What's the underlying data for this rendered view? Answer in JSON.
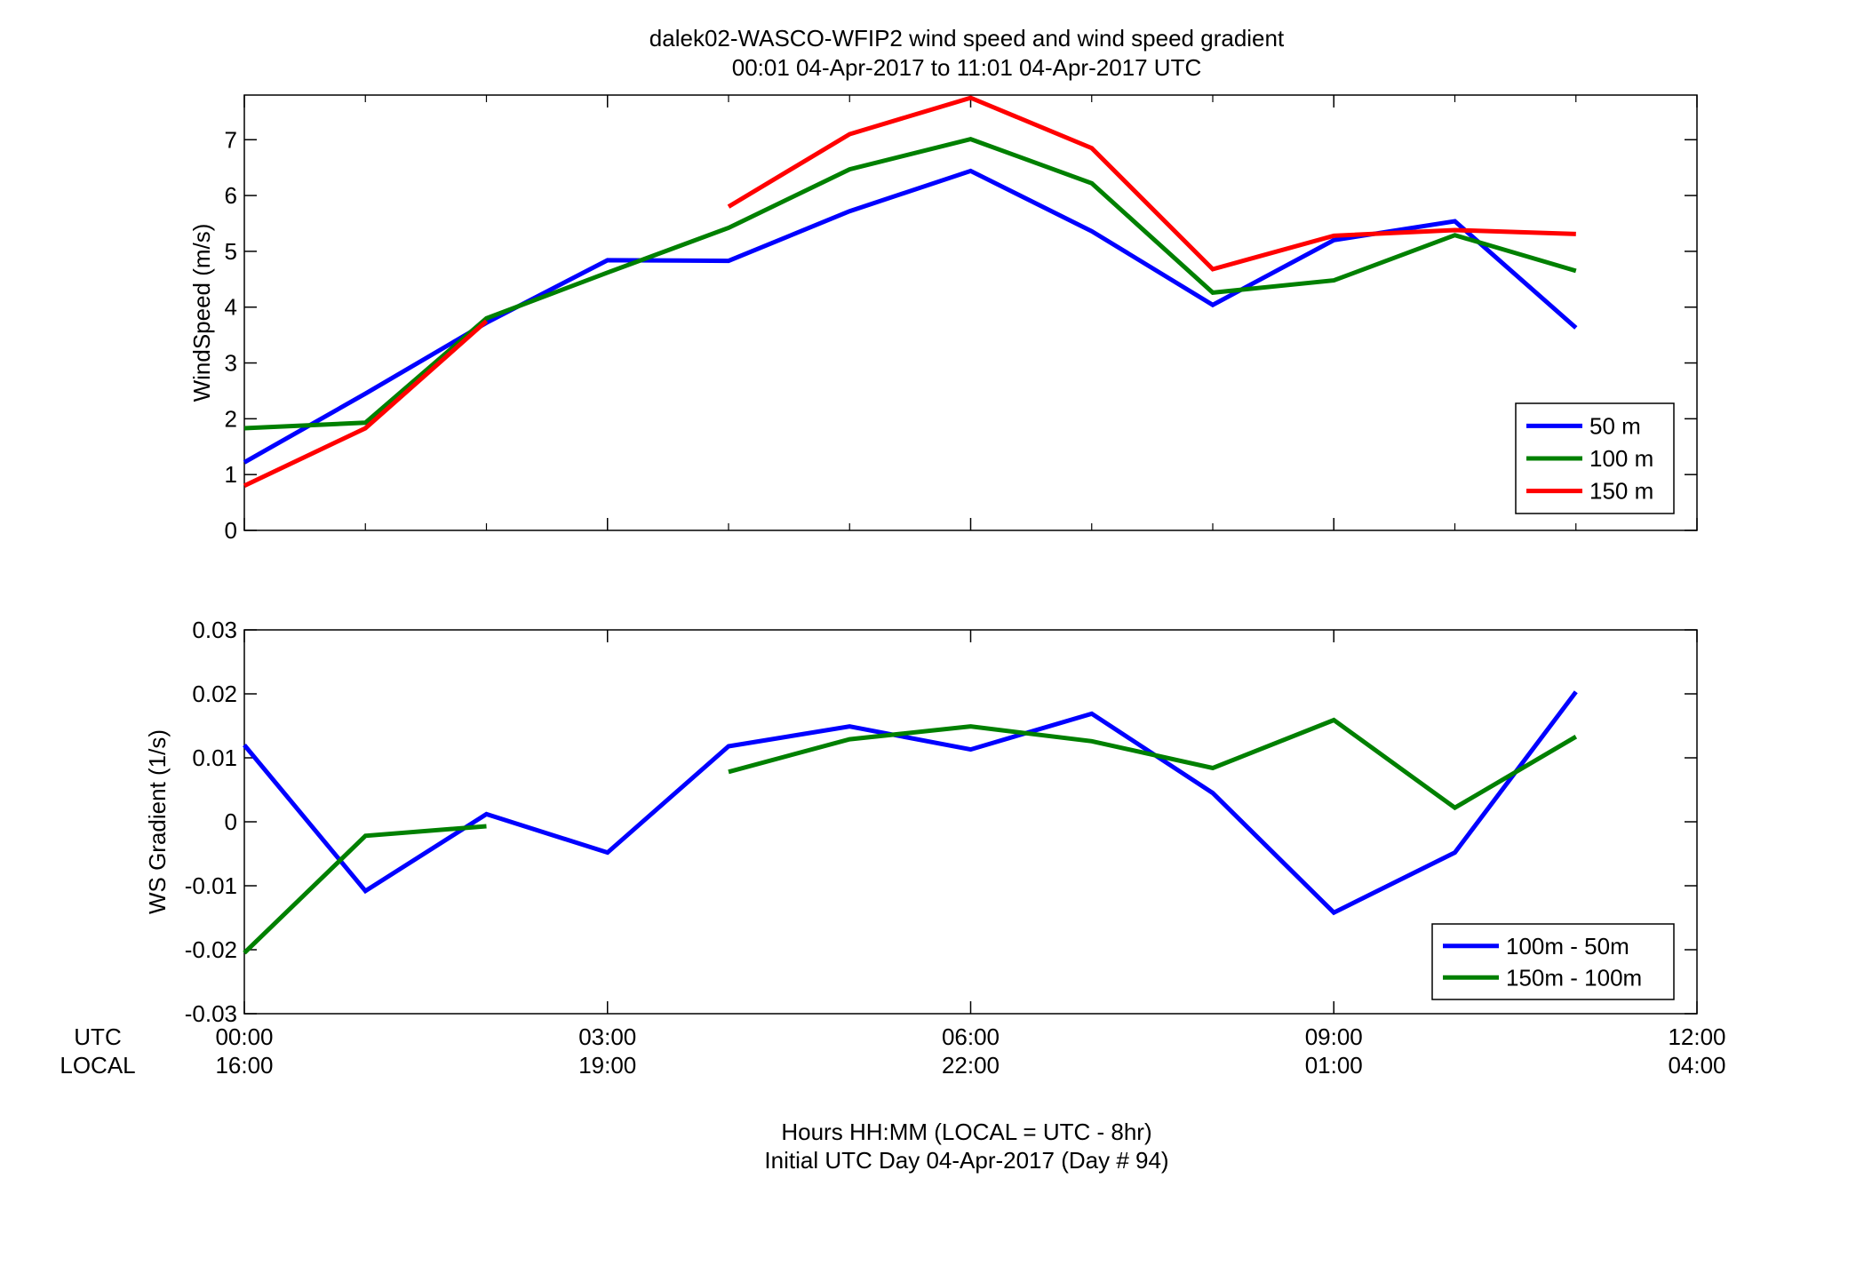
{
  "title_line1": "dalek02-WASCO-WFIP2  wind speed and wind speed gradient",
  "title_line2": "00:01 04-Apr-2017 to 11:01 04-Apr-2017  UTC",
  "xaxis": {
    "row_label_utc": "UTC",
    "row_label_local": "LOCAL",
    "label_line1": "Hours HH:MM  (LOCAL = UTC - 8hr)",
    "label_line2": "Initial UTC Day 04-Apr-2017 (Day # 94)",
    "ticks": [
      {
        "hour": 0,
        "utc": "00:00",
        "local": "16:00"
      },
      {
        "hour": 3,
        "utc": "03:00",
        "local": "19:00"
      },
      {
        "hour": 6,
        "utc": "06:00",
        "local": "22:00"
      },
      {
        "hour": 9,
        "utc": "09:00",
        "local": "01:00"
      },
      {
        "hour": 12,
        "utc": "12:00",
        "local": "04:00"
      }
    ],
    "xlim": [
      0,
      12
    ]
  },
  "colors": {
    "blue": "#0000ff",
    "green": "#008000",
    "red": "#ff0000"
  },
  "chart_data": [
    {
      "type": "line",
      "ylabel": "WindSpeed (m/s)",
      "ylim": [
        0,
        7.8
      ],
      "yticks": [
        0,
        1,
        2,
        3,
        4,
        5,
        6,
        7
      ],
      "legend_position": "bottom-right",
      "series": [
        {
          "name": "50 m",
          "color": "#0000ff",
          "x": [
            0,
            1,
            2,
            3,
            4,
            5,
            6,
            7,
            8,
            9,
            10,
            11
          ],
          "y": [
            1.22,
            2.45,
            3.72,
            4.84,
            4.83,
            5.72,
            6.44,
            5.36,
            4.04,
            5.2,
            5.54,
            3.63
          ]
        },
        {
          "name": "100 m",
          "color": "#008000",
          "x": [
            0,
            1,
            2,
            3,
            4,
            5,
            6,
            7,
            8,
            9,
            10,
            11
          ],
          "y": [
            1.83,
            1.93,
            3.8,
            4.62,
            5.42,
            6.47,
            7.01,
            6.22,
            4.26,
            4.48,
            5.29,
            4.65
          ]
        },
        {
          "name": "150 m",
          "color": "#ff0000",
          "x": [
            0,
            1,
            2,
            null,
            4,
            5,
            6,
            7,
            8,
            9,
            10,
            11
          ],
          "y": [
            0.8,
            1.83,
            3.75,
            null,
            5.8,
            7.1,
            7.75,
            6.85,
            4.68,
            5.28,
            5.38,
            5.31
          ]
        }
      ]
    },
    {
      "type": "line",
      "ylabel": "WS Gradient (1/s)",
      "ylim": [
        -0.03,
        0.03
      ],
      "yticks": [
        -0.03,
        -0.02,
        -0.01,
        0,
        0.01,
        0.02,
        0.03
      ],
      "ytick_labels": [
        "-0.03",
        "-0.02",
        "-0.01",
        "0",
        "0.01",
        "0.02",
        "0.03"
      ],
      "legend_position": "bottom-right",
      "series": [
        {
          "name": "100m - 50m",
          "color": "#0000ff",
          "x": [
            0,
            1,
            2,
            3,
            4,
            5,
            6,
            7,
            8,
            9,
            10,
            11
          ],
          "y": [
            0.012,
            -0.0108,
            0.0012,
            -0.0048,
            0.0118,
            0.0149,
            0.0113,
            0.0169,
            0.0045,
            -0.0142,
            -0.0048,
            0.0203
          ]
        },
        {
          "name": "150m - 100m",
          "color": "#008000",
          "x": [
            0,
            1,
            2,
            3,
            4,
            5,
            6,
            7,
            8,
            9,
            10,
            11
          ],
          "y": [
            -0.0205,
            -0.0022,
            -0.0007,
            null,
            0.0078,
            0.0129,
            0.0149,
            0.0126,
            0.0084,
            0.0159,
            0.0022,
            0.0133
          ]
        }
      ]
    }
  ]
}
